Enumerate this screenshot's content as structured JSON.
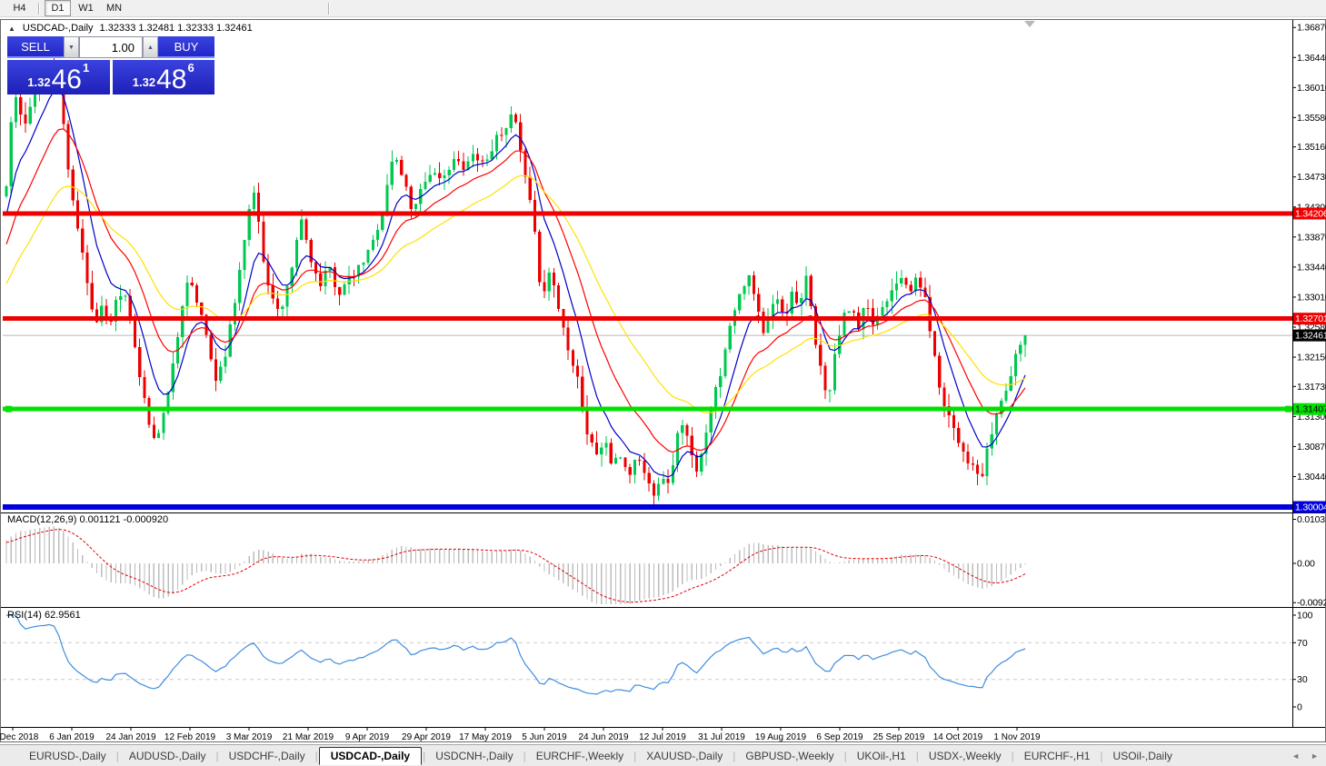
{
  "toolbar": {
    "timeframes": [
      "H4",
      "D1",
      "W1",
      "MN"
    ],
    "active": "D1"
  },
  "chart": {
    "title": {
      "symbol": "USDCAD-,Daily",
      "ohlc": "1.32333 1.32481 1.32333 1.32461"
    },
    "trade_panel": {
      "sell_label": "SELL",
      "buy_label": "BUY",
      "volume": "1.00",
      "sell_price": {
        "prefix": "1.32",
        "big": "46",
        "sup": "1"
      },
      "buy_price": {
        "prefix": "1.32",
        "big": "48",
        "sup": "6"
      }
    },
    "macd": {
      "label": "MACD(12,26,9)",
      "values": "0.001121 -0.000920",
      "axis": [
        "0.010311",
        "0.00",
        "-0.00920"
      ]
    },
    "rsi": {
      "label": "RSI(14)",
      "value": "62.9561",
      "axis": [
        "100",
        "70",
        "30",
        "0"
      ]
    }
  },
  "icons": {
    "collapse": "▲",
    "spin_down": "▼",
    "spin_up": "▲",
    "tab_scroll_left": "◄",
    "tab_scroll_right": "►"
  },
  "tabs": {
    "items": [
      "EURUSD-,Daily",
      "AUDUSD-,Daily",
      "USDCHF-,Daily",
      "USDCAD-,Daily",
      "USDCNH-,Daily",
      "EURCHF-,Weekly",
      "XAUUSD-,Daily",
      "GBPUSD-,Weekly",
      "UKOil-,H1",
      "USDX-,Weekly",
      "EURCHF-,H1",
      "USOil-,Daily"
    ],
    "active": "USDCAD-,Daily"
  },
  "chart_data": {
    "type": "candlestick",
    "symbol": "USDCAD-,Daily",
    "price_axis_ticks": [
      "1.36870",
      "1.36440",
      "1.36010",
      "1.35580",
      "1.35160",
      "1.34730",
      "1.34300",
      "1.33870",
      "1.33440",
      "1.33010",
      "1.32580",
      "1.32150",
      "1.31730",
      "1.31300",
      "1.30870",
      "1.30440"
    ],
    "date_axis_labels": [
      "18 Dec 2018",
      "6 Jan 2019",
      "24 Jan 2019",
      "12 Feb 2019",
      "3 Mar 2019",
      "21 Mar 2019",
      "9 Apr 2019",
      "29 Apr 2019",
      "17 May 2019",
      "5 Jun 2019",
      "24 Jun 2019",
      "12 Jul 2019",
      "31 Jul 2019",
      "19 Aug 2019",
      "6 Sep 2019",
      "25 Sep 2019",
      "14 Oct 2019",
      "1 Nov 2019"
    ],
    "current_price": 1.32461,
    "current_price_label": "1.32461",
    "horizontal_lines": [
      {
        "name": "resistance-line-upper",
        "price": 1.34206,
        "label": "1.34206",
        "color": "#ee0000",
        "width": 5,
        "label_bg": "#ee0000",
        "label_fg": "#ffffff",
        "selected": false
      },
      {
        "name": "resistance-line-lower",
        "price": 1.32701,
        "label": "1.32701",
        "color": "#ee0000",
        "width": 5,
        "label_bg": "#ee0000",
        "label_fg": "#ffffff",
        "selected": false
      },
      {
        "name": "support-line-green",
        "price": 1.31407,
        "label": "1.31407",
        "color": "#00e100",
        "width": 5,
        "label_bg": "#00e100",
        "label_fg": "#000000",
        "selected": true
      },
      {
        "name": "support-line-blue",
        "price": 1.30004,
        "label": "1.30004",
        "color": "#0000dc",
        "width": 6,
        "label_bg": "#0000dc",
        "label_fg": "#ffffff",
        "selected": false
      }
    ],
    "moving_averages": [
      {
        "name": "ma-fast",
        "period": 8,
        "color": "#0000c8"
      },
      {
        "name": "ma-medium",
        "period": 17,
        "color": "#ff0000"
      },
      {
        "name": "ma-slow",
        "period": 34,
        "color": "#ffe100"
      }
    ],
    "macd_params": {
      "fast": 12,
      "slow": 26,
      "signal": 9,
      "axis_max": 0.010311,
      "axis_min": -0.0092
    },
    "rsi_params": {
      "period": 14,
      "levels": [
        70,
        30
      ]
    },
    "colors": {
      "bull": "#00c850",
      "bear": "#ec0000",
      "macd_bar": "#bdbdbd",
      "macd_signal": "#e00000",
      "rsi_line": "#3e8ede",
      "level_dash": "#c9c9c9",
      "current_line": "#b9b9b9",
      "axis": "#000000"
    },
    "candle_count": 215,
    "noise_seed": 11,
    "close_waypoints": [
      [
        -210,
        1.313
      ],
      [
        -160,
        1.3195
      ],
      [
        -110,
        1.3255
      ],
      [
        -70,
        1.33
      ],
      [
        -40,
        1.3355
      ],
      [
        -15,
        1.341
      ],
      [
        7,
        1.3455
      ],
      [
        12,
        1.3555
      ],
      [
        18,
        1.3585
      ],
      [
        26,
        1.354
      ],
      [
        36,
        1.3595
      ],
      [
        48,
        1.3615
      ],
      [
        57,
        1.365
      ],
      [
        64,
        1.3615
      ],
      [
        72,
        1.352
      ],
      [
        80,
        1.344
      ],
      [
        88,
        1.339
      ],
      [
        96,
        1.332
      ],
      [
        104,
        1.3255
      ],
      [
        112,
        1.329
      ],
      [
        120,
        1.3262
      ],
      [
        130,
        1.3305
      ],
      [
        140,
        1.3298
      ],
      [
        148,
        1.3232
      ],
      [
        157,
        1.3163
      ],
      [
        166,
        1.3112
      ],
      [
        173,
        1.3096
      ],
      [
        181,
        1.314
      ],
      [
        190,
        1.3205
      ],
      [
        199,
        1.327
      ],
      [
        208,
        1.333
      ],
      [
        217,
        1.3292
      ],
      [
        227,
        1.3246
      ],
      [
        237,
        1.3182
      ],
      [
        247,
        1.3216
      ],
      [
        257,
        1.3282
      ],
      [
        266,
        1.3362
      ],
      [
        274,
        1.3432
      ],
      [
        281,
        1.3452
      ],
      [
        289,
        1.3356
      ],
      [
        299,
        1.3302
      ],
      [
        309,
        1.3272
      ],
      [
        320,
        1.3332
      ],
      [
        331,
        1.3415
      ],
      [
        341,
        1.3362
      ],
      [
        352,
        1.3312
      ],
      [
        362,
        1.3346
      ],
      [
        372,
        1.3306
      ],
      [
        382,
        1.3322
      ],
      [
        392,
        1.3336
      ],
      [
        402,
        1.3356
      ],
      [
        412,
        1.3386
      ],
      [
        422,
        1.3432
      ],
      [
        433,
        1.3506
      ],
      [
        443,
        1.3476
      ],
      [
        453,
        1.3426
      ],
      [
        463,
        1.3456
      ],
      [
        474,
        1.3482
      ],
      [
        486,
        1.3462
      ],
      [
        498,
        1.3502
      ],
      [
        510,
        1.3482
      ],
      [
        522,
        1.3508
      ],
      [
        534,
        1.3492
      ],
      [
        546,
        1.3528
      ],
      [
        557,
        1.3548
      ],
      [
        566,
        1.3562
      ],
      [
        576,
        1.3482
      ],
      [
        586,
        1.3416
      ],
      [
        596,
        1.3302
      ],
      [
        606,
        1.3342
      ],
      [
        616,
        1.3276
      ],
      [
        626,
        1.3226
      ],
      [
        636,
        1.3186
      ],
      [
        646,
        1.3106
      ],
      [
        656,
        1.3076
      ],
      [
        666,
        1.3096
      ],
      [
        674,
        1.3056
      ],
      [
        682,
        1.3076
      ],
      [
        692,
        1.3046
      ],
      [
        702,
        1.3076
      ],
      [
        712,
        1.3036
      ],
      [
        720,
        1.3022
      ],
      [
        728,
        1.305
      ],
      [
        736,
        1.3028
      ],
      [
        744,
        1.3096
      ],
      [
        752,
        1.3126
      ],
      [
        760,
        1.3076
      ],
      [
        768,
        1.3042
      ],
      [
        776,
        1.3106
      ],
      [
        784,
        1.3156
      ],
      [
        792,
        1.3186
      ],
      [
        800,
        1.3246
      ],
      [
        808,
        1.3286
      ],
      [
        816,
        1.3306
      ],
      [
        824,
        1.333
      ],
      [
        832,
        1.3292
      ],
      [
        840,
        1.3246
      ],
      [
        848,
        1.3282
      ],
      [
        856,
        1.3302
      ],
      [
        864,
        1.3272
      ],
      [
        872,
        1.331
      ],
      [
        880,
        1.329
      ],
      [
        888,
        1.333
      ],
      [
        896,
        1.3242
      ],
      [
        904,
        1.319
      ],
      [
        912,
        1.3156
      ],
      [
        920,
        1.323
      ],
      [
        928,
        1.327
      ],
      [
        936,
        1.329
      ],
      [
        944,
        1.3252
      ],
      [
        952,
        1.329
      ],
      [
        960,
        1.3262
      ],
      [
        968,
        1.328
      ],
      [
        976,
        1.33
      ],
      [
        984,
        1.3322
      ],
      [
        992,
        1.3334
      ],
      [
        1000,
        1.33
      ],
      [
        1008,
        1.333
      ],
      [
        1016,
        1.331
      ],
      [
        1024,
        1.3252
      ],
      [
        1032,
        1.3182
      ],
      [
        1040,
        1.3146
      ],
      [
        1048,
        1.312
      ],
      [
        1056,
        1.3092
      ],
      [
        1064,
        1.307
      ],
      [
        1072,
        1.3052
      ],
      [
        1080,
        1.304
      ],
      [
        1088,
        1.309
      ],
      [
        1096,
        1.313
      ],
      [
        1104,
        1.316
      ],
      [
        1112,
        1.3186
      ],
      [
        1120,
        1.3226
      ],
      [
        1125,
        1.3238
      ],
      [
        1128,
        1.32461
      ]
    ]
  }
}
